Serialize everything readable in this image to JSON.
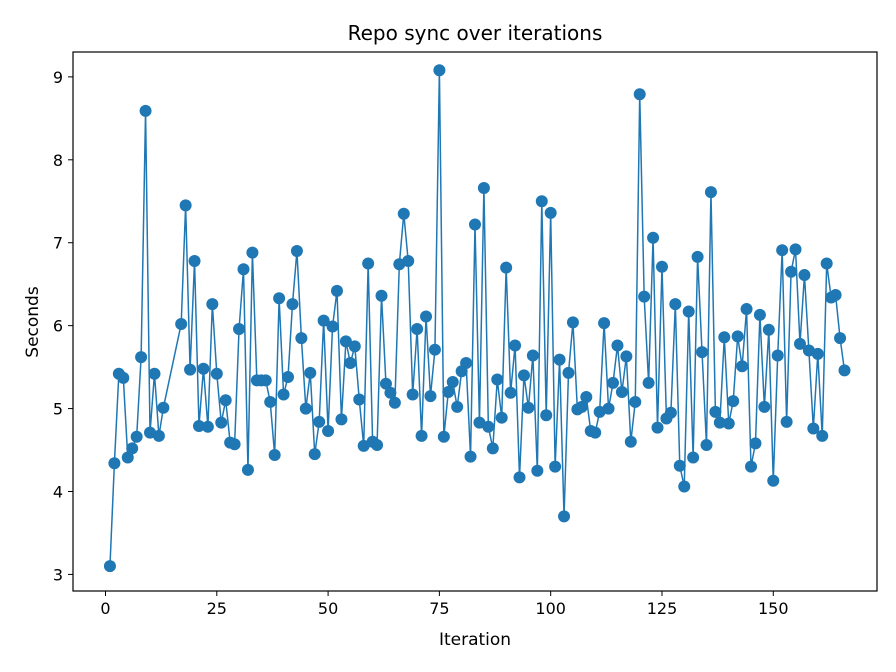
{
  "chart_data": {
    "type": "line",
    "title": "Repo sync over iterations",
    "xlabel": "Iteration",
    "ylabel": "Seconds",
    "xlim": [
      -7.3,
      173.3
    ],
    "ylim": [
      2.8,
      9.3
    ],
    "xticks": [
      0,
      25,
      50,
      75,
      100,
      125,
      150
    ],
    "yticks": [
      3,
      4,
      5,
      6,
      7,
      8,
      9
    ],
    "grid": false,
    "legend": "none",
    "color": "#1f77b4",
    "marker": "circle",
    "series": [
      {
        "x": [
          1,
          2,
          3,
          4,
          5,
          6,
          7,
          8,
          9,
          10,
          11,
          12,
          13,
          17,
          18,
          19,
          20,
          21,
          22,
          23,
          24,
          25,
          26,
          27,
          28,
          29,
          30,
          31,
          32,
          33,
          34,
          35,
          36,
          37,
          38,
          39,
          40,
          41,
          42,
          43,
          44,
          45,
          46,
          47,
          48,
          49,
          50,
          51,
          52,
          53,
          54,
          55,
          56,
          57,
          58,
          59,
          60,
          61,
          62,
          63,
          64,
          65,
          66,
          67,
          68,
          69,
          70,
          71,
          72,
          73,
          74,
          75,
          76,
          77,
          78,
          79,
          80,
          81,
          82,
          83,
          84,
          85,
          86,
          87,
          88,
          89,
          90,
          91,
          92,
          93,
          94,
          95,
          96,
          97,
          98,
          99,
          100,
          101,
          102,
          103,
          104,
          105,
          106,
          107,
          108,
          109,
          110,
          111,
          112,
          113,
          114,
          115,
          116,
          117,
          118,
          119,
          120,
          121,
          122,
          123,
          124,
          125,
          126,
          127,
          128,
          129,
          130,
          131,
          132,
          133,
          134,
          135,
          136,
          137,
          138,
          139,
          140,
          141,
          142,
          143,
          144,
          145,
          146,
          147,
          148,
          149,
          150,
          151,
          152,
          153,
          154,
          155,
          156,
          157,
          158,
          159,
          160,
          161,
          162,
          163,
          164,
          165,
          166
        ],
        "y": [
          3.1,
          4.34,
          5.42,
          5.37,
          4.41,
          4.52,
          4.66,
          5.62,
          8.59,
          4.71,
          5.42,
          4.67,
          5.01,
          6.02,
          7.45,
          5.47,
          6.78,
          4.79,
          5.48,
          4.78,
          6.26,
          5.42,
          4.83,
          5.1,
          4.59,
          4.57,
          5.96,
          6.68,
          4.26,
          6.88,
          5.34,
          5.34,
          5.34,
          5.08,
          4.44,
          6.33,
          5.17,
          5.38,
          6.26,
          6.9,
          5.85,
          5.0,
          5.43,
          4.45,
          4.84,
          6.06,
          4.73,
          5.99,
          6.42,
          4.87,
          5.81,
          5.55,
          5.75,
          5.11,
          4.55,
          6.75,
          4.6,
          4.56,
          6.36,
          5.3,
          5.19,
          5.07,
          6.74,
          7.35,
          6.78,
          5.17,
          5.96,
          4.67,
          6.11,
          5.15,
          5.71,
          9.08,
          4.66,
          5.2,
          5.32,
          5.02,
          5.45,
          5.55,
          4.42,
          7.22,
          4.83,
          7.66,
          4.78,
          4.52,
          5.35,
          4.89,
          6.7,
          5.19,
          5.76,
          4.17,
          5.4,
          5.01,
          5.64,
          4.25,
          7.5,
          4.92,
          7.36,
          4.3,
          5.59,
          3.7,
          5.43,
          6.04,
          4.99,
          5.02,
          5.14,
          4.73,
          4.71,
          4.96,
          6.03,
          5.0,
          5.31,
          5.76,
          5.2,
          5.63,
          4.6,
          5.08,
          8.79,
          6.35,
          5.31,
          7.06,
          4.77,
          6.71,
          4.88,
          4.95,
          6.26,
          4.31,
          4.06,
          6.17,
          4.41,
          6.83,
          5.68,
          4.56,
          7.61,
          4.96,
          4.83,
          5.86,
          4.82,
          5.09,
          5.87,
          5.51,
          6.2,
          4.3,
          4.58,
          6.13,
          5.02,
          5.95,
          4.13,
          5.64,
          6.91,
          4.84,
          6.65,
          6.92,
          5.78,
          6.61,
          5.7,
          4.76,
          5.66,
          4.67,
          6.75,
          6.34,
          6.37,
          5.85,
          5.46
        ]
      }
    ]
  }
}
